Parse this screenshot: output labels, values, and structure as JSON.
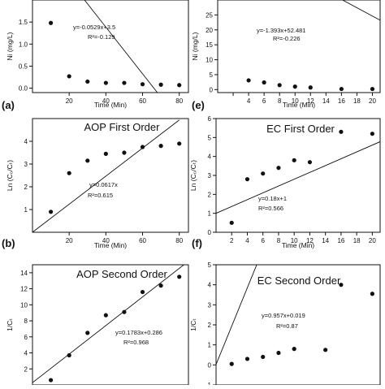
{
  "chart_data": [
    {
      "panel": "(a)",
      "type": "scatter",
      "title": "",
      "xlabel": "Time (Min)",
      "ylabel": "Ni (mg/L)",
      "xlim": [
        0,
        85
      ],
      "ylim": [
        -0.1,
        2.0
      ],
      "xticks": [
        20,
        40,
        60,
        80
      ],
      "yticks": [
        0.0,
        0.5,
        1.0,
        1.5
      ],
      "x": [
        10,
        20,
        30,
        40,
        50,
        60,
        70,
        80
      ],
      "y": [
        1.48,
        0.27,
        0.15,
        0.12,
        0.12,
        0.09,
        0.08,
        0.07
      ],
      "fit": {
        "slope": -0.0529,
        "intercept": 3.5
      },
      "equation": "y=-0.0529x+3.5",
      "r2": "R²=-0.129"
    },
    {
      "panel": "(e)",
      "type": "scatter",
      "title": "",
      "xlabel": "Time (Min)",
      "ylabel": "Ni (mg/L)",
      "xlim": [
        0,
        21
      ],
      "ylim": [
        -1,
        30
      ],
      "xticks": [
        2,
        4,
        6,
        8,
        10,
        12,
        14,
        16,
        18,
        20
      ],
      "xticklabels": [
        "",
        "4",
        "6",
        "8",
        "10",
        "12",
        "14",
        "16",
        "18",
        "20"
      ],
      "yticks": [
        0,
        5,
        10,
        15,
        20,
        25
      ],
      "x": [
        4,
        6,
        8,
        10,
        12,
        16,
        20
      ],
      "y": [
        3.1,
        2.4,
        1.5,
        1.0,
        0.7,
        0.2,
        0.2
      ],
      "fit": {
        "slope": -1.393,
        "intercept": 52.481
      },
      "equation": "y=-1.393x+52.481",
      "r2": "R²=-0.226"
    },
    {
      "panel": "(b)",
      "type": "scatter",
      "title": "AOP First Order",
      "xlabel": "Time (Min)",
      "ylabel": "Ln (C₀/Cₜ)",
      "xlim": [
        0,
        85
      ],
      "ylim": [
        0,
        5
      ],
      "xticks": [
        20,
        40,
        60,
        80
      ],
      "yticks": [
        1,
        2,
        3,
        4
      ],
      "x": [
        10,
        20,
        30,
        40,
        50,
        60,
        70,
        80
      ],
      "y": [
        0.9,
        2.6,
        3.15,
        3.45,
        3.5,
        3.75,
        3.8,
        3.9
      ],
      "fit": {
        "slope": 0.0617,
        "intercept": 0
      },
      "fit_range": [
        0,
        80
      ],
      "equation": "y=0.0617x",
      "r2": "R²=0.615"
    },
    {
      "panel": "(f)",
      "type": "scatter",
      "title": "EC First Order",
      "xlabel": "Time (Min)",
      "ylabel": "Ln (C₀/Cₜ)",
      "xlim": [
        0,
        21
      ],
      "ylim": [
        0,
        6
      ],
      "xticks": [
        2,
        4,
        6,
        8,
        10,
        12,
        14,
        16,
        18,
        20
      ],
      "xticklabels": [
        "2",
        "4",
        "6",
        "8",
        "10",
        "12",
        "14",
        "16",
        "18",
        "20"
      ],
      "yticks": [
        0,
        1,
        2,
        3,
        4,
        5,
        6
      ],
      "x": [
        2,
        4,
        6,
        8,
        10,
        12,
        16,
        20
      ],
      "y": [
        0.5,
        2.8,
        3.1,
        3.4,
        3.8,
        3.7,
        5.3,
        5.2
      ],
      "fit": {
        "slope": 0.18,
        "intercept": 1
      },
      "equation": "y=0.18x+1",
      "r2": "R²=0.566"
    },
    {
      "panel": "",
      "type": "scatter",
      "title": "AOP Second Order",
      "xlabel": "",
      "ylabel": "1/Cₜ",
      "xlim": [
        0,
        85
      ],
      "ylim": [
        0,
        15
      ],
      "xticks": [],
      "yticks": [
        2,
        4,
        6,
        8,
        10,
        12,
        14
      ],
      "x": [
        10,
        20,
        30,
        40,
        50,
        60,
        70,
        80
      ],
      "y": [
        0.6,
        3.7,
        6.5,
        8.7,
        9.1,
        11.6,
        12.4,
        13.5
      ],
      "fit": {
        "slope": 0.1783,
        "intercept": 0.286
      },
      "equation": "y=0.1783x+0.286",
      "r2": "R²=0.968"
    },
    {
      "panel": "",
      "type": "scatter",
      "title": "EC Second Order",
      "xlabel": "",
      "ylabel": "1/Cₜ",
      "xlim": [
        0,
        21
      ],
      "ylim": [
        -1,
        5
      ],
      "xticks": [],
      "yticks": [
        -1,
        0,
        1,
        2,
        3,
        4,
        5
      ],
      "x": [
        2,
        4,
        6,
        8,
        10,
        14,
        16,
        20
      ],
      "y": [
        0.05,
        0.3,
        0.4,
        0.6,
        0.8,
        0.75,
        4.0,
        3.55
      ],
      "fit": {
        "slope": 0.957,
        "intercept": 0.019
      },
      "equation": "y=0.957x+0.019",
      "r2": "R²=0.87"
    }
  ]
}
